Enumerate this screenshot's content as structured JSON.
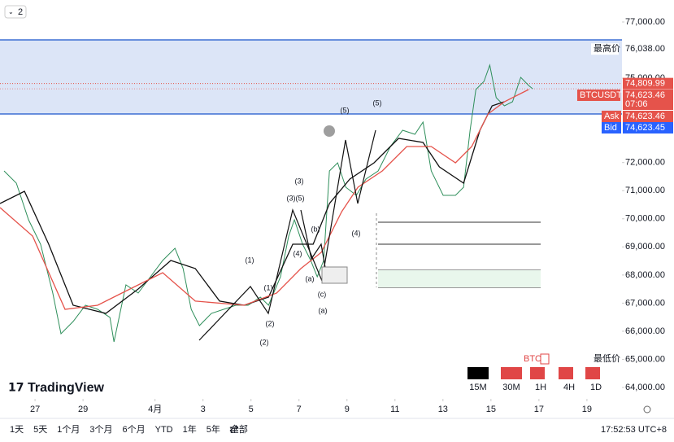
{
  "chart_data": {
    "type": "line",
    "xlim": [
      25.54,
      51.46
    ],
    "ylim": [
      63595,
      77782
    ],
    "xticks": [
      {
        "value": 27,
        "label": "27"
      },
      {
        "value": 29,
        "label": "29"
      },
      {
        "value": 32,
        "label": "4月"
      },
      {
        "value": 34,
        "label": "3"
      },
      {
        "value": 36,
        "label": "5"
      },
      {
        "value": 38,
        "label": "7"
      },
      {
        "value": 40,
        "label": "9"
      },
      {
        "value": 42,
        "label": "11"
      },
      {
        "value": 44,
        "label": "13"
      },
      {
        "value": 46,
        "label": "15"
      },
      {
        "value": 48,
        "label": "17"
      },
      {
        "value": 50,
        "label": "19"
      }
    ],
    "yticks": [
      {
        "value": 64000,
        "label": "64,000.00"
      },
      {
        "value": 65000,
        "label": "65,000.00"
      },
      {
        "value": 66000,
        "label": "66,000.00"
      },
      {
        "value": 67000,
        "label": "67,000.00"
      },
      {
        "value": 68000,
        "label": "68,000.00"
      },
      {
        "value": 69000,
        "label": "69,000.00"
      },
      {
        "value": 70000,
        "label": "70,000.00"
      },
      {
        "value": 71000,
        "label": "71,000.00"
      },
      {
        "value": 72000,
        "label": "72,000.00"
      },
      {
        "value": 75000,
        "label": "75,000.00"
      },
      {
        "value": 77000,
        "label": "77,000.00"
      }
    ],
    "zone": [
      73729,
      76363
    ],
    "zone_color": "#dce5f7",
    "zone_line_color": "#3d6fd4",
    "series": [
      {
        "name": "BTCUSDT",
        "color": "#2f8f5b",
        "x": [
          25.71,
          26.22,
          26.73,
          27.23,
          27.74,
          28.08,
          28.59,
          29.1,
          29.61,
          30.12,
          30.29,
          30.79,
          31.3,
          31.81,
          32.32,
          32.83,
          33.17,
          33.51,
          33.85,
          34.35,
          34.86,
          35.37,
          35.88,
          36.39,
          36.73,
          37.23,
          37.57,
          37.81,
          38.15,
          38.49,
          38.76,
          39.03,
          39.27,
          39.61,
          39.95,
          40.39,
          40.79,
          41.3,
          41.81,
          42.32,
          42.83,
          43.17,
          43.51,
          44.01,
          44.52,
          44.86,
          45.13,
          45.37,
          45.71,
          45.95,
          46.22,
          46.56,
          46.9,
          47.24,
          47.57,
          47.74
        ],
        "values": [
          71703,
          71268,
          69966,
          69097,
          67360,
          65912,
          66347,
          66926,
          66781,
          66492,
          65623,
          67650,
          67360,
          67939,
          68518,
          68952,
          68229,
          66781,
          66202,
          66636,
          66781,
          66926,
          66926,
          67215,
          66926,
          67939,
          69387,
          69966,
          69097,
          68518,
          67939,
          68518,
          71703,
          71992,
          71124,
          70834,
          71413,
          71703,
          72571,
          73150,
          73005,
          73440,
          71703,
          70834,
          70834,
          71124,
          73150,
          74598,
          74887,
          75466,
          74308,
          74019,
          74163,
          75032,
          74742,
          74623.46
        ]
      },
      {
        "color": "#111111",
        "x": [
          25.54,
          26.56,
          27.57,
          28.59,
          29.95,
          31.3,
          32.66,
          33.68,
          34.69,
          35.71,
          36.73,
          37.74,
          38.59,
          39.27,
          40.12,
          41.13,
          42.15,
          43.17,
          43.85,
          44.86,
          45.54,
          46.05,
          46.56
        ],
        "values": [
          70545,
          70979,
          69097,
          66926,
          66636,
          67505,
          68518,
          68229,
          67071,
          66926,
          67215,
          69097,
          69097,
          70545,
          71413,
          71992,
          72861,
          72716,
          71847,
          71268,
          73150,
          74019,
          74163
        ]
      },
      {
        "color": "#e5534b",
        "x": [
          25.54,
          26.9,
          28.25,
          29.61,
          30.62,
          32.32,
          33.68,
          35.71,
          37.07,
          38.08,
          38.93,
          39.78,
          40.46,
          41.47,
          42.49,
          43.51,
          44.52,
          45.2,
          45.88,
          46.56,
          47.57
        ],
        "values": [
          70400,
          69387,
          66781,
          66926,
          67360,
          68084,
          67071,
          66926,
          67360,
          68229,
          68807,
          70255,
          71124,
          71703,
          72571,
          72571,
          71992,
          72571,
          73729,
          74163,
          74598
        ]
      }
    ],
    "last_price": {
      "value": 74809.99,
      "label": "74,809.99"
    },
    "high": {
      "title": "最高价",
      "price": {
        "value": 76038,
        "label": "76,038.00"
      }
    },
    "low": {
      "title": "最低价"
    },
    "symbol_price": {
      "value": 74623.46,
      "label": "74,623.46"
    },
    "countdown": "07:06",
    "ask": {
      "title": "Ask",
      "price": {
        "value": 74623.46,
        "label": "74,623.46"
      }
    },
    "bid": {
      "title": "Bid",
      "price": {
        "value": 74623.45,
        "label": "74,623.45"
      }
    },
    "wave_labels": [
      "(1)",
      "(2)",
      "(1)",
      "(2)",
      "(3)",
      "(3)",
      "(5)",
      "(4)",
      "(b)",
      "(a)",
      "(c)",
      "(a)",
      "(5)",
      "(5)",
      "(4)"
    ]
  },
  "pane_count": "2",
  "logo": "TradingView",
  "legend_symbol": "BTC",
  "timeframes": [
    {
      "label": "15M",
      "color": "#000000"
    },
    {
      "label": "30M",
      "color": "#e04646"
    },
    {
      "label": "1H",
      "color": "#e04646"
    },
    {
      "label": "4H",
      "color": "#e04646"
    },
    {
      "label": "1D",
      "color": "#e04646"
    }
  ],
  "toolbar": {
    "ranges": [
      "1天",
      "5天",
      "1个月",
      "3个月",
      "6个月",
      "YTD",
      "1年",
      "5年",
      "全部"
    ],
    "clock": "17:52:53 UTC+8"
  }
}
